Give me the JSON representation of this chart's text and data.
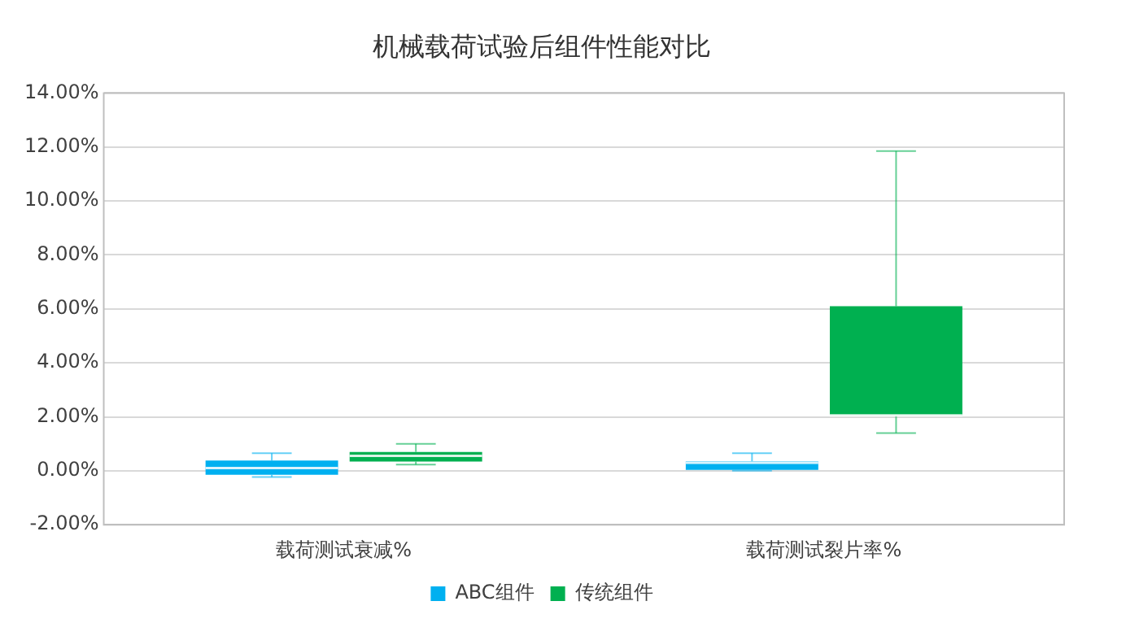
{
  "chart_data": {
    "type": "box",
    "title": "机械载荷试验后组件性能对比",
    "categories": [
      "载荷测试衰减%",
      "载荷测试裂片率%"
    ],
    "series": [
      {
        "name": "ABC组件",
        "color": "#00b0f0",
        "boxes": [
          {
            "low": -0.23,
            "q1": -0.15,
            "median": 0.1,
            "q3": 0.38,
            "high": 0.65
          },
          {
            "low": 0,
            "q1": 0,
            "median": 0.3,
            "q3": 0.35,
            "high": 0.65
          }
        ]
      },
      {
        "name": "传统组件",
        "color": "#00b050",
        "boxes": [
          {
            "low": 0.23,
            "q1": 0.34,
            "median": 0.55,
            "q3": 0.7,
            "high": 1.0
          },
          {
            "low": 1.4,
            "q1": 2.05,
            "median": 2.05,
            "q3": 6.1,
            "high": 11.85
          }
        ]
      }
    ],
    "ylim": [
      -2,
      14
    ],
    "yticks": [
      {
        "value": -2,
        "label": "-2.00%"
      },
      {
        "value": 0,
        "label": "0.00%"
      },
      {
        "value": 2,
        "label": "2.00%"
      },
      {
        "value": 4,
        "label": "4.00%"
      },
      {
        "value": 6,
        "label": "6.00%"
      },
      {
        "value": 8,
        "label": "8.00%"
      },
      {
        "value": 10,
        "label": "10.00%"
      },
      {
        "value": 12,
        "label": "12.00%"
      },
      {
        "value": 14,
        "label": "14.00%"
      }
    ],
    "grid": "y",
    "legend": "bottom"
  }
}
